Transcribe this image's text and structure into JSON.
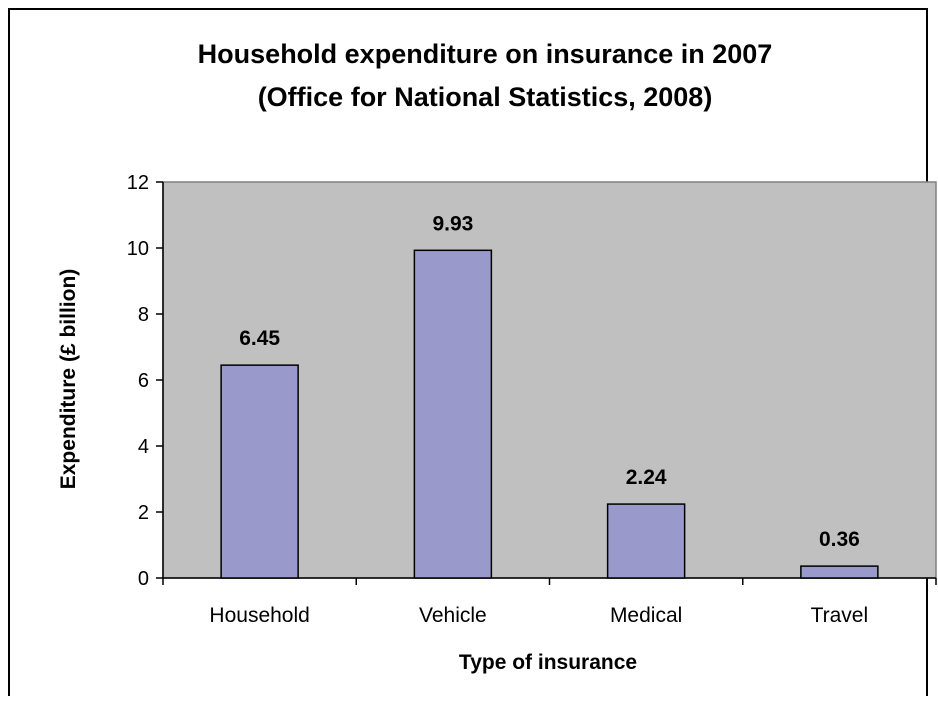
{
  "chart_data": {
    "type": "bar",
    "title": "Household expenditure on insurance in 2007",
    "subtitle": "(Office for National Statistics, 2008)",
    "xlabel": "Type of insurance",
    "ylabel": "Expenditure (£ billion)",
    "categories": [
      "Household",
      "Vehicle",
      "Medical",
      "Travel"
    ],
    "values": [
      6.45,
      9.93,
      2.24,
      0.36
    ],
    "data_labels": [
      "6.45",
      "9.93",
      "2.24",
      "0.36"
    ],
    "ylim": [
      0,
      12
    ],
    "yticks": [
      0,
      2,
      4,
      6,
      8,
      10,
      12
    ],
    "grid": false,
    "legend": "none",
    "colors": {
      "bar_fill": "#9999cc",
      "bar_stroke": "#000000",
      "plot_background": "#c0c0c0",
      "axis": "#808080"
    }
  }
}
